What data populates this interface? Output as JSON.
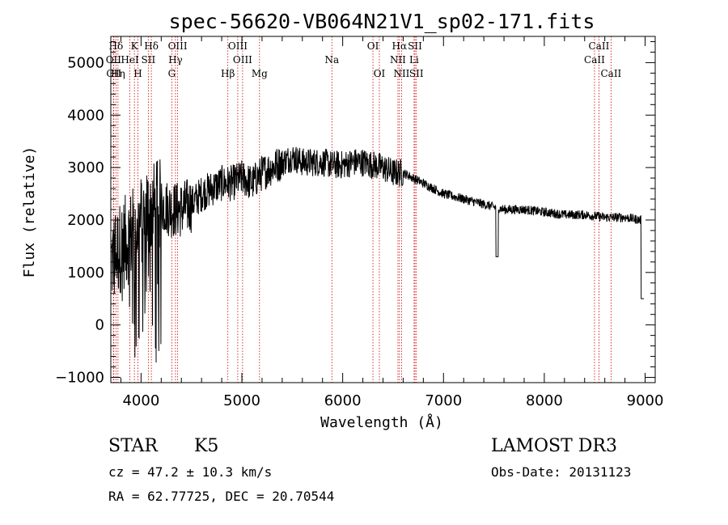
{
  "chart_data": {
    "type": "line",
    "title": "spec-56620-VB064N21V1_sp02-171.fits",
    "xlabel": "Wavelength (Å)",
    "ylabel": "Flux (relative)",
    "xlim": [
      3700,
      9100
    ],
    "ylim": [
      -1100,
      5500
    ],
    "xticks": [
      4000,
      5000,
      6000,
      7000,
      8000,
      9000
    ],
    "yticks": [
      -1000,
      0,
      1000,
      2000,
      3000,
      4000,
      5000
    ],
    "xtick_labels": [
      "4000",
      "5000",
      "6000",
      "7000",
      "8000",
      "9000"
    ],
    "ytick_labels": [
      "−1000",
      "0",
      "1000",
      "2000",
      "3000",
      "4000",
      "5000"
    ],
    "spectrum_envelope": {
      "x": [
        3700,
        3800,
        3900,
        4000,
        4100,
        4200,
        4300,
        4400,
        4500,
        4600,
        4700,
        4800,
        4900,
        5000,
        5100,
        5200,
        5300,
        5400,
        5500,
        5600,
        5700,
        5800,
        5900,
        6000,
        6100,
        6200,
        6300,
        6400,
        6500,
        6600,
        6700,
        6800,
        6900,
        7000,
        7200,
        7400,
        7600,
        7800,
        8000,
        8200,
        8400,
        8600,
        8800,
        8950
      ],
      "y": [
        1200,
        1500,
        1700,
        2000,
        2200,
        2300,
        2200,
        2200,
        2300,
        2500,
        2600,
        2700,
        2700,
        2800,
        2700,
        2900,
        3000,
        3100,
        3200,
        3100,
        3100,
        3100,
        3050,
        3050,
        3100,
        3100,
        3050,
        3000,
        2900,
        2900,
        2800,
        2700,
        2600,
        2500,
        2400,
        2300,
        2200,
        2200,
        2150,
        2100,
        2100,
        2050,
        2050,
        2000
      ]
    },
    "spectral_lines": [
      {
        "name": "Hδ",
        "wavelength": 3751,
        "row": 0
      },
      {
        "name": "OII",
        "wavelength": 3727,
        "row": 1
      },
      {
        "name": "CII",
        "wavelength": 3730,
        "row": 2
      },
      {
        "name": "Hη",
        "wavelength": 3771,
        "row": 2
      },
      {
        "name": "K",
        "wavelength": 3934,
        "row": 0
      },
      {
        "name": "HeI",
        "wavelength": 3889,
        "row": 1
      },
      {
        "name": "SII",
        "wavelength": 4072,
        "row": 1
      },
      {
        "name": "H",
        "wavelength": 3969,
        "row": 2
      },
      {
        "name": "Hδ",
        "wavelength": 4102,
        "row": 0
      },
      {
        "name": "OIII",
        "wavelength": 4363,
        "row": 0
      },
      {
        "name": "Hγ",
        "wavelength": 4341,
        "row": 1
      },
      {
        "name": "G",
        "wavelength": 4305,
        "row": 2
      },
      {
        "name": "OIII",
        "wavelength": 4959,
        "row": 0
      },
      {
        "name": "OIII",
        "wavelength": 5007,
        "row": 1
      },
      {
        "name": "Hβ",
        "wavelength": 4861,
        "row": 2
      },
      {
        "name": "Mg",
        "wavelength": 5175,
        "row": 2
      },
      {
        "name": "Na",
        "wavelength": 5893,
        "row": 1
      },
      {
        "name": "OI",
        "wavelength": 6300,
        "row": 0
      },
      {
        "name": "OI",
        "wavelength": 6364,
        "row": 2
      },
      {
        "name": "Hα",
        "wavelength": 6563,
        "row": 0
      },
      {
        "name": "SII",
        "wavelength": 6717,
        "row": 0
      },
      {
        "name": "NII",
        "wavelength": 6548,
        "row": 1
      },
      {
        "name": "Li",
        "wavelength": 6708,
        "row": 1
      },
      {
        "name": "NII",
        "wavelength": 6584,
        "row": 2
      },
      {
        "name": "SII",
        "wavelength": 6731,
        "row": 2
      },
      {
        "name": "CaII",
        "wavelength": 8542,
        "row": 0
      },
      {
        "name": "CaII",
        "wavelength": 8498,
        "row": 1
      },
      {
        "name": "CaII",
        "wavelength": 8662,
        "row": 2
      }
    ]
  },
  "footer": {
    "object_class": "STAR",
    "subclass": "K5",
    "survey": "LAMOST DR3",
    "redshift": "cz = 47.2 ± 10.3 km/s",
    "obs_date": "Obs-Date: 20131123",
    "coords": "RA =  62.77725, DEC =  20.70544"
  },
  "colors": {
    "axis": "#000000",
    "spectrum": "#000000",
    "line_marker": "#cc0000"
  }
}
